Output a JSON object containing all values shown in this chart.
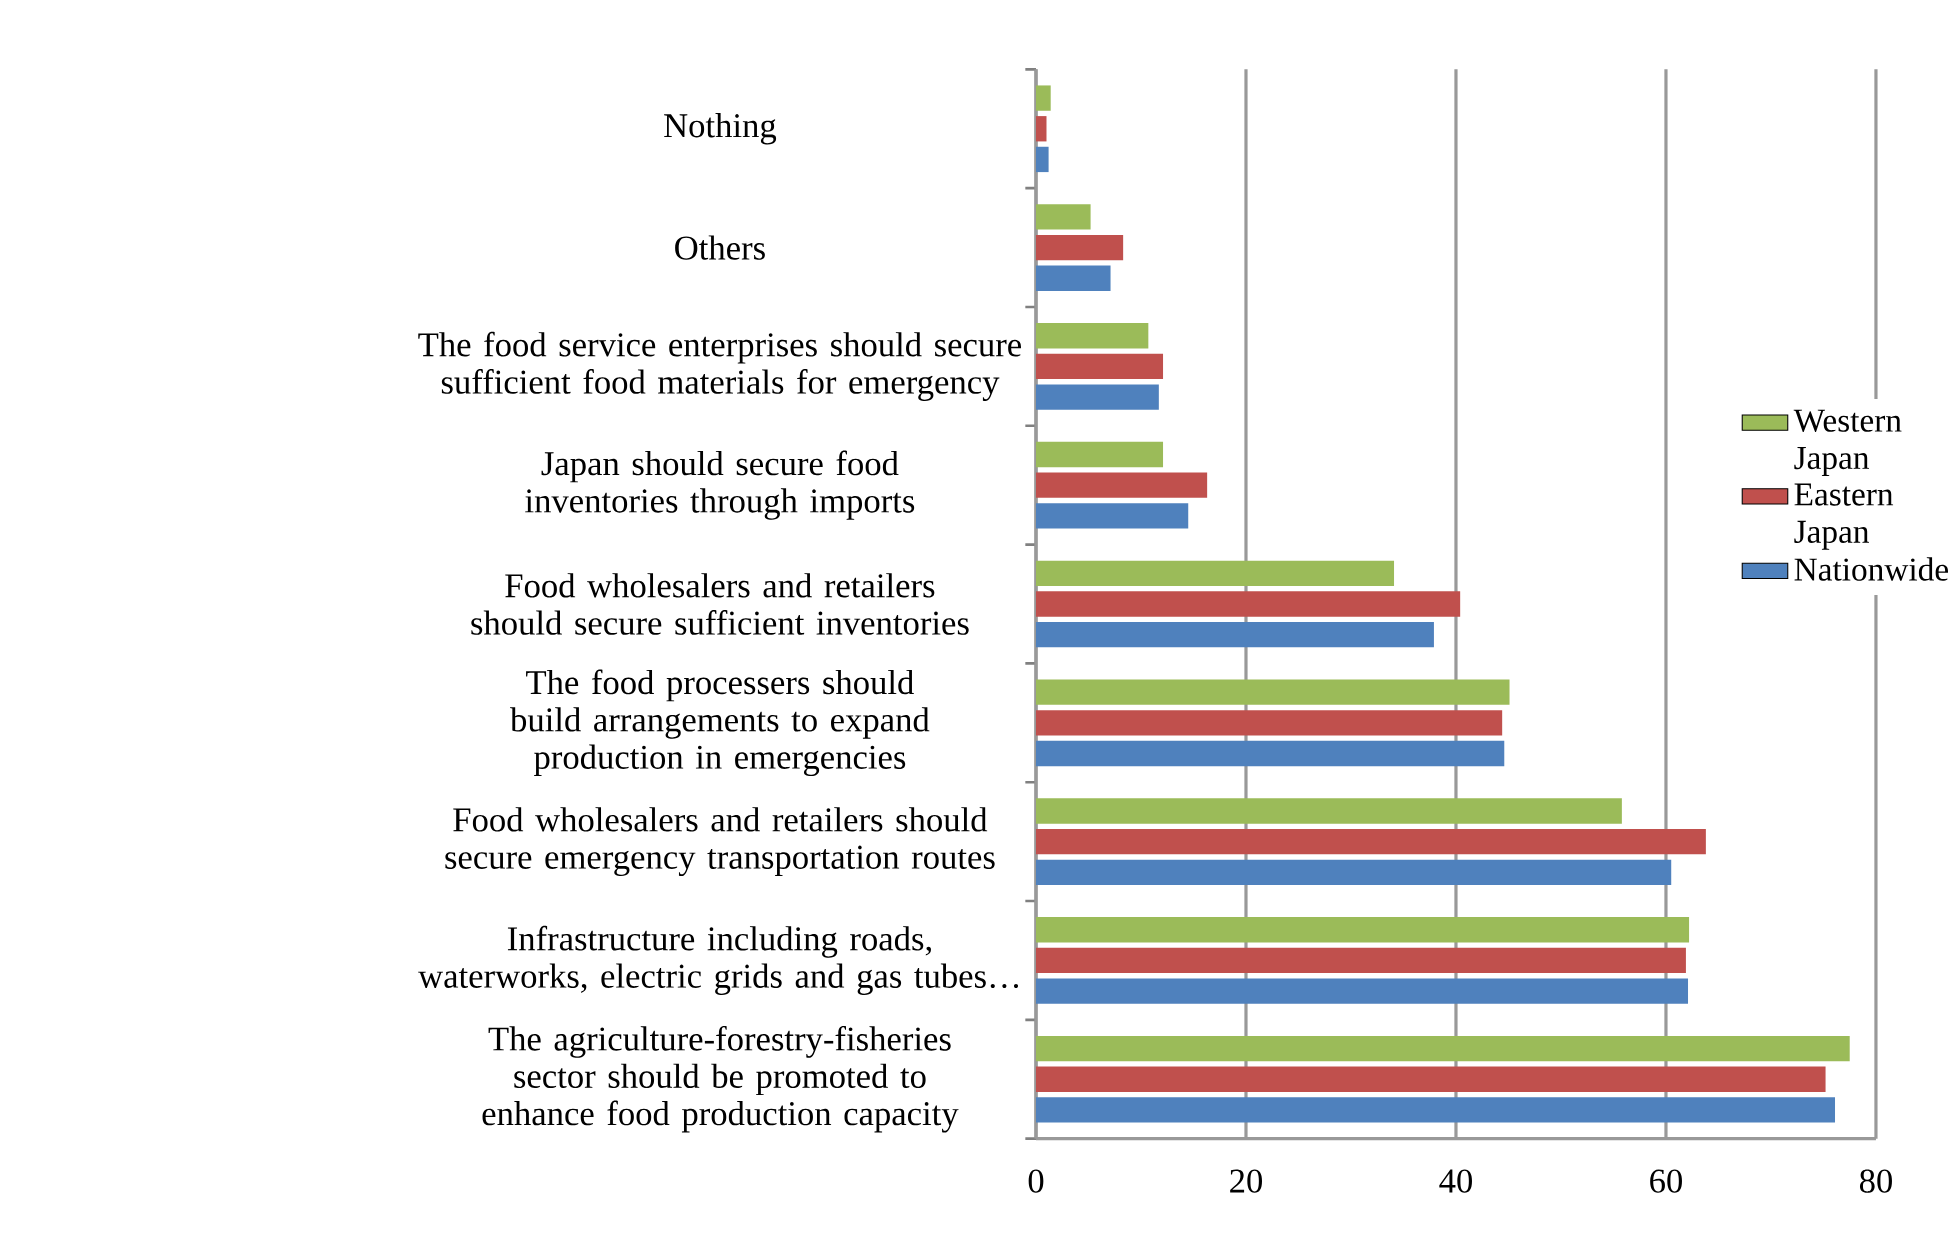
{
  "chart_data": {
    "type": "bar",
    "orientation": "horizontal",
    "categories": [
      "Nothing",
      "Others",
      "The food service enterprises should secure sufficient food materials for emergency",
      "Japan should secure food inventories through imports",
      "Food wholesalers and retailers should secure sufficient inventories",
      "The food processers should build arrangements to expand production in emergencies",
      "Food wholesalers and retailers should secure emergency transportation routes",
      "Infrastructure including roads, waterworks, electric grids and gas tubes…",
      "The agriculture-forestry-fisheries sector should be promoted to enhance food production capacity"
    ],
    "series": [
      {
        "name": "Nationwide",
        "color": "#4f81bd",
        "values": [
          1.2,
          7.1,
          11.7,
          14.5,
          37.9,
          44.6,
          60.5,
          62.1,
          76.1
        ]
      },
      {
        "name": "Eastern Japan",
        "color": "#c0504d",
        "values": [
          1.0,
          8.3,
          12.1,
          16.3,
          40.4,
          44.4,
          63.8,
          61.9,
          75.2
        ]
      },
      {
        "name": "Western Japan",
        "color": "#9bbb59",
        "values": [
          1.4,
          5.2,
          10.7,
          12.1,
          34.1,
          45.1,
          55.8,
          62.2,
          77.5
        ]
      }
    ],
    "xlim": [
      0,
      80
    ],
    "xticks": [
      0,
      20,
      40,
      60,
      80
    ],
    "grid": "x",
    "legend": "right"
  }
}
